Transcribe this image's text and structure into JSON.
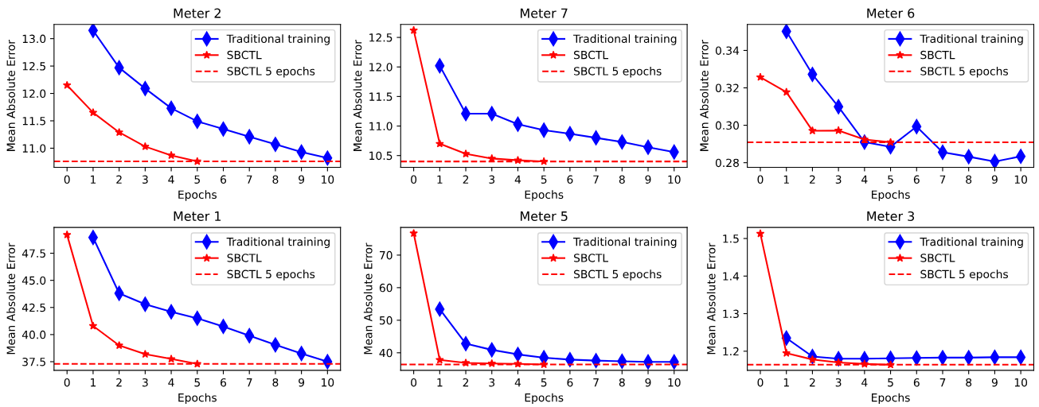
{
  "chart_data": [
    {
      "type": "line",
      "title": "Meter 2",
      "xlabel": "Epochs",
      "ylabel": "Mean Absolute Error",
      "x": [
        0,
        1,
        2,
        3,
        4,
        5,
        6,
        7,
        8,
        9,
        10
      ],
      "xlim": [
        -0.5,
        10.5
      ],
      "xticks": [
        0,
        1,
        2,
        3,
        4,
        5,
        6,
        7,
        8,
        9,
        10
      ],
      "ylim": [
        10.65,
        13.26
      ],
      "yticks": [
        {
          "value": 11,
          "label": "11.0"
        },
        {
          "value": 11.5,
          "label": "11.5"
        },
        {
          "value": 12,
          "label": "12.0"
        },
        {
          "value": 12.5,
          "label": "12.5"
        },
        {
          "value": 13,
          "label": "13.0"
        }
      ],
      "legend": "top right",
      "grid": false,
      "series": [
        {
          "name": "Traditional training",
          "color": "#0000ff",
          "marker": "diamond",
          "values": [
            null,
            13.15,
            12.47,
            12.09,
            11.73,
            11.49,
            11.35,
            11.21,
            11.07,
            10.93,
            10.82
          ]
        },
        {
          "name": "SBCTL",
          "color": "#ff0000",
          "marker": "star",
          "values": [
            12.15,
            11.65,
            11.29,
            11.03,
            10.87,
            10.76,
            null,
            null,
            null,
            null,
            null
          ]
        }
      ],
      "ref_lines": [
        {
          "axis": "y",
          "value": 10.76,
          "label": "SBCTL 5 epochs",
          "color": "#ff0000",
          "line_style": "dashed"
        }
      ]
    },
    {
      "type": "line",
      "title": "Meter 7",
      "xlabel": "Epochs",
      "ylabel": "Mean Absolute Error",
      "x": [
        0,
        1,
        2,
        3,
        4,
        5,
        6,
        7,
        8,
        9,
        10
      ],
      "xlim": [
        -0.5,
        10.5
      ],
      "xticks": [
        0,
        1,
        2,
        3,
        4,
        5,
        6,
        7,
        8,
        9,
        10
      ],
      "ylim": [
        10.3,
        12.72
      ],
      "yticks": [
        {
          "value": 10.5,
          "label": "10.5"
        },
        {
          "value": 11,
          "label": "11.0"
        },
        {
          "value": 11.5,
          "label": "11.5"
        },
        {
          "value": 12,
          "label": "12.0"
        },
        {
          "value": 12.5,
          "label": "12.5"
        }
      ],
      "legend": "top right",
      "grid": false,
      "series": [
        {
          "name": "Traditional training",
          "color": "#0000ff",
          "marker": "diamond",
          "values": [
            null,
            12.02,
            11.21,
            11.21,
            11.03,
            10.93,
            10.87,
            10.8,
            10.73,
            10.64,
            10.56
          ]
        },
        {
          "name": "SBCTL",
          "color": "#ff0000",
          "marker": "star",
          "values": [
            12.62,
            10.7,
            10.53,
            10.45,
            10.42,
            10.4,
            null,
            null,
            null,
            null,
            null
          ]
        }
      ],
      "ref_lines": [
        {
          "axis": "y",
          "value": 10.4,
          "label": "SBCTL 5 epochs",
          "color": "#ff0000",
          "line_style": "dashed"
        }
      ]
    },
    {
      "type": "line",
      "title": "Meter 6",
      "xlabel": "Epochs",
      "ylabel": "Mean Absolute Error",
      "x": [
        0,
        1,
        2,
        3,
        4,
        5,
        6,
        7,
        8,
        9,
        10
      ],
      "xlim": [
        -0.5,
        10.5
      ],
      "xticks": [
        0,
        1,
        2,
        3,
        4,
        5,
        6,
        7,
        8,
        9,
        10
      ],
      "ylim": [
        0.2775,
        0.3539
      ],
      "yticks": [
        {
          "value": 0.28,
          "label": "0.28"
        },
        {
          "value": 0.3,
          "label": "0.30"
        },
        {
          "value": 0.32,
          "label": "0.32"
        },
        {
          "value": 0.34,
          "label": "0.34"
        }
      ],
      "legend": "top right",
      "grid": false,
      "series": [
        {
          "name": "Traditional training",
          "color": "#0000ff",
          "marker": "diamond",
          "values": [
            null,
            0.3502,
            0.3272,
            0.3099,
            0.291,
            0.2885,
            0.2993,
            0.2856,
            0.2832,
            0.2806,
            0.2834
          ]
        },
        {
          "name": "SBCTL",
          "color": "#ff0000",
          "marker": "star",
          "values": [
            0.3257,
            0.3177,
            0.2971,
            0.2972,
            0.2924,
            0.2909,
            null,
            null,
            null,
            null,
            null
          ]
        }
      ],
      "ref_lines": [
        {
          "axis": "y",
          "value": 0.2909,
          "label": "SBCTL 5 epochs",
          "color": "#ff0000",
          "line_style": "dashed"
        }
      ]
    },
    {
      "type": "line",
      "title": "Meter 1",
      "xlabel": "Epochs",
      "ylabel": "Mean Absolute Error",
      "x": [
        0,
        1,
        2,
        3,
        4,
        5,
        6,
        7,
        8,
        9,
        10
      ],
      "xlim": [
        -0.5,
        10.5
      ],
      "xticks": [
        0,
        1,
        2,
        3,
        4,
        5,
        6,
        7,
        8,
        9,
        10
      ],
      "ylim": [
        36.7,
        49.88
      ],
      "yticks": [
        37.5,
        {
          "value": 40,
          "label": "40.0"
        },
        42.5,
        {
          "value": 45,
          "label": "45.0"
        },
        47.5
      ],
      "legend": "top right",
      "grid": false,
      "series": [
        {
          "name": "Traditional training",
          "color": "#0000ff",
          "marker": "diamond",
          "values": [
            null,
            48.95,
            43.8,
            42.8,
            42.1,
            41.5,
            40.75,
            39.9,
            39.05,
            38.25,
            37.5
          ]
        },
        {
          "name": "SBCTL",
          "color": "#ff0000",
          "marker": "star",
          "values": [
            49.2,
            40.8,
            39.0,
            38.2,
            37.75,
            37.3,
            null,
            null,
            null,
            null,
            null
          ]
        }
      ],
      "ref_lines": [
        {
          "axis": "y",
          "value": 37.3,
          "label": "SBCTL 5 epochs",
          "color": "#ff0000",
          "line_style": "dashed"
        }
      ]
    },
    {
      "type": "line",
      "title": "Meter 5",
      "xlabel": "Epochs",
      "ylabel": "Mean Absolute Error",
      "x": [
        0,
        1,
        2,
        3,
        4,
        5,
        6,
        7,
        8,
        9,
        10
      ],
      "xlim": [
        -0.5,
        10.5
      ],
      "xticks": [
        0,
        1,
        2,
        3,
        4,
        5,
        6,
        7,
        8,
        9,
        10
      ],
      "ylim": [
        34.6,
        78.5
      ],
      "yticks": [
        40,
        50,
        60,
        70
      ],
      "legend": "top right",
      "grid": false,
      "series": [
        {
          "name": "Traditional training",
          "color": "#0000ff",
          "marker": "diamond",
          "values": [
            null,
            53.4,
            42.8,
            40.9,
            39.5,
            38.5,
            37.9,
            37.6,
            37.4,
            37.2,
            37.2
          ]
        },
        {
          "name": "SBCTL",
          "color": "#ff0000",
          "marker": "star",
          "values": [
            76.7,
            37.8,
            36.9,
            36.7,
            36.6,
            36.4,
            null,
            null,
            null,
            null,
            null
          ]
        }
      ],
      "ref_lines": [
        {
          "axis": "y",
          "value": 36.4,
          "label": "SBCTL 5 epochs",
          "color": "#ff0000",
          "line_style": "dashed"
        }
      ]
    },
    {
      "type": "line",
      "title": "Meter 3",
      "xlabel": "Epochs",
      "ylabel": "Mean Absolute Error",
      "x": [
        0,
        1,
        2,
        3,
        4,
        5,
        6,
        7,
        8,
        9,
        10
      ],
      "xlim": [
        -0.5,
        10.5
      ],
      "xticks": [
        0,
        1,
        2,
        3,
        4,
        5,
        6,
        7,
        8,
        9,
        10
      ],
      "ylim": [
        1.149,
        1.5295
      ],
      "yticks": [
        1.2,
        1.3,
        1.4,
        1.5
      ],
      "legend": "top right",
      "grid": false,
      "series": [
        {
          "name": "Traditional training",
          "color": "#0000ff",
          "marker": "diamond",
          "values": [
            null,
            1.235,
            1.186,
            1.18,
            1.18,
            1.181,
            1.182,
            1.183,
            1.183,
            1.184,
            1.184
          ]
        },
        {
          "name": "SBCTL",
          "color": "#ff0000",
          "marker": "star",
          "values": [
            1.513,
            1.195,
            1.178,
            1.17,
            1.166,
            1.164,
            null,
            null,
            null,
            null,
            null
          ]
        }
      ],
      "ref_lines": [
        {
          "axis": "y",
          "value": 1.164,
          "label": "SBCTL 5 epochs",
          "color": "#ff0000",
          "line_style": "dashed"
        }
      ]
    }
  ]
}
